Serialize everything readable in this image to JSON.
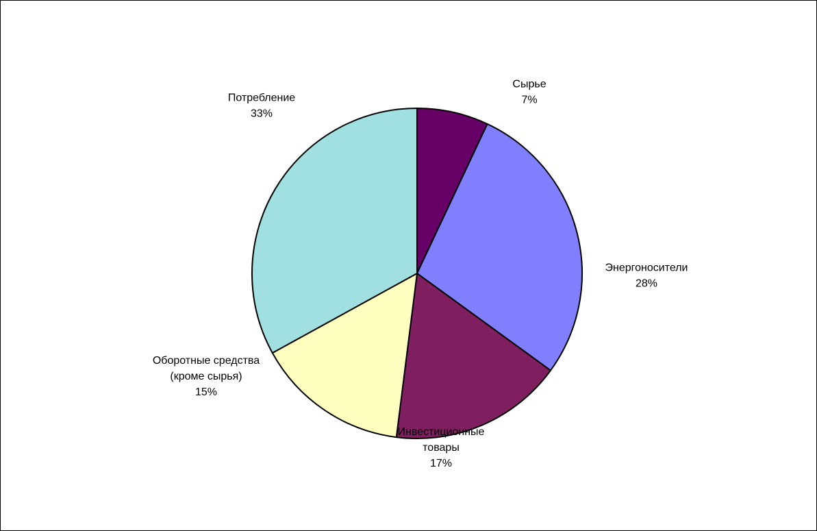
{
  "chart_data": {
    "type": "pie",
    "title": "",
    "start_angle_deg": 0,
    "direction": "clockwise",
    "slices": [
      {
        "name": "Сырье",
        "value": 7,
        "label": "7%",
        "color": "#660066"
      },
      {
        "name": "Энергоносители",
        "value": 28,
        "label": "28%",
        "color": "#8080FF"
      },
      {
        "name": "Инвестиционные товары",
        "value": 17,
        "label": "17%",
        "color": "#7F1F5F"
      },
      {
        "name": "Оборотные средства (кроме сырья)",
        "value": 15,
        "label": "15%",
        "color": "#FFFFC0"
      },
      {
        "name": "Потребление",
        "value": 33,
        "label": "33%",
        "color": "#A0E0E0"
      }
    ],
    "slice_label_lines": [
      [
        "Сырье",
        "7%"
      ],
      [
        "Энергоносители",
        "28%"
      ],
      [
        "Инвестиционные",
        "товары",
        "17%"
      ],
      [
        "Оборотные средства",
        "(кроме сырья)",
        "15%"
      ],
      [
        "Потребление",
        "33%"
      ]
    ],
    "legend": "none"
  }
}
